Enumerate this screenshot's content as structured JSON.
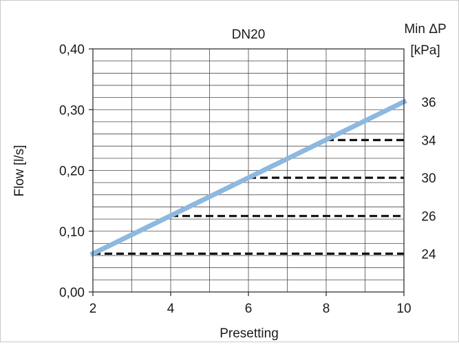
{
  "chart_data": {
    "type": "line",
    "title": "DN20",
    "xlabel": "Presetting",
    "ylabel": "Flow [l/s]",
    "y2label_line1": "Min ΔP",
    "y2label_line2": "[kPa]",
    "xlim": [
      2,
      10
    ],
    "ylim": [
      0,
      0.4
    ],
    "x_ticks": [
      2,
      4,
      6,
      8,
      10
    ],
    "x_tick_labels": [
      "2",
      "4",
      "6",
      "8",
      "10"
    ],
    "y_ticks": [
      0,
      0.1,
      0.2,
      0.3,
      0.4
    ],
    "y_tick_labels": [
      "0,00",
      "0,10",
      "0,20",
      "0,30",
      "0,40"
    ],
    "grid": true,
    "x_minor_step": 1,
    "y_minor_step": 0.02,
    "series": [
      {
        "x": [
          2,
          10
        ],
        "y": [
          0.063,
          0.313
        ],
        "color": "#8db8df"
      }
    ],
    "reference_lines": [
      {
        "x_start": 2,
        "x_end": 10,
        "y": 0.063,
        "label": "24"
      },
      {
        "x_start": 4,
        "x_end": 10,
        "y": 0.125,
        "label": "26"
      },
      {
        "x_start": 6,
        "x_end": 10,
        "y": 0.188,
        "label": "30"
      },
      {
        "x_start": 8,
        "x_end": 10,
        "y": 0.25,
        "label": "34"
      }
    ],
    "end_label": {
      "y": 0.313,
      "label": "36"
    },
    "reference_line_color": "#111111"
  }
}
